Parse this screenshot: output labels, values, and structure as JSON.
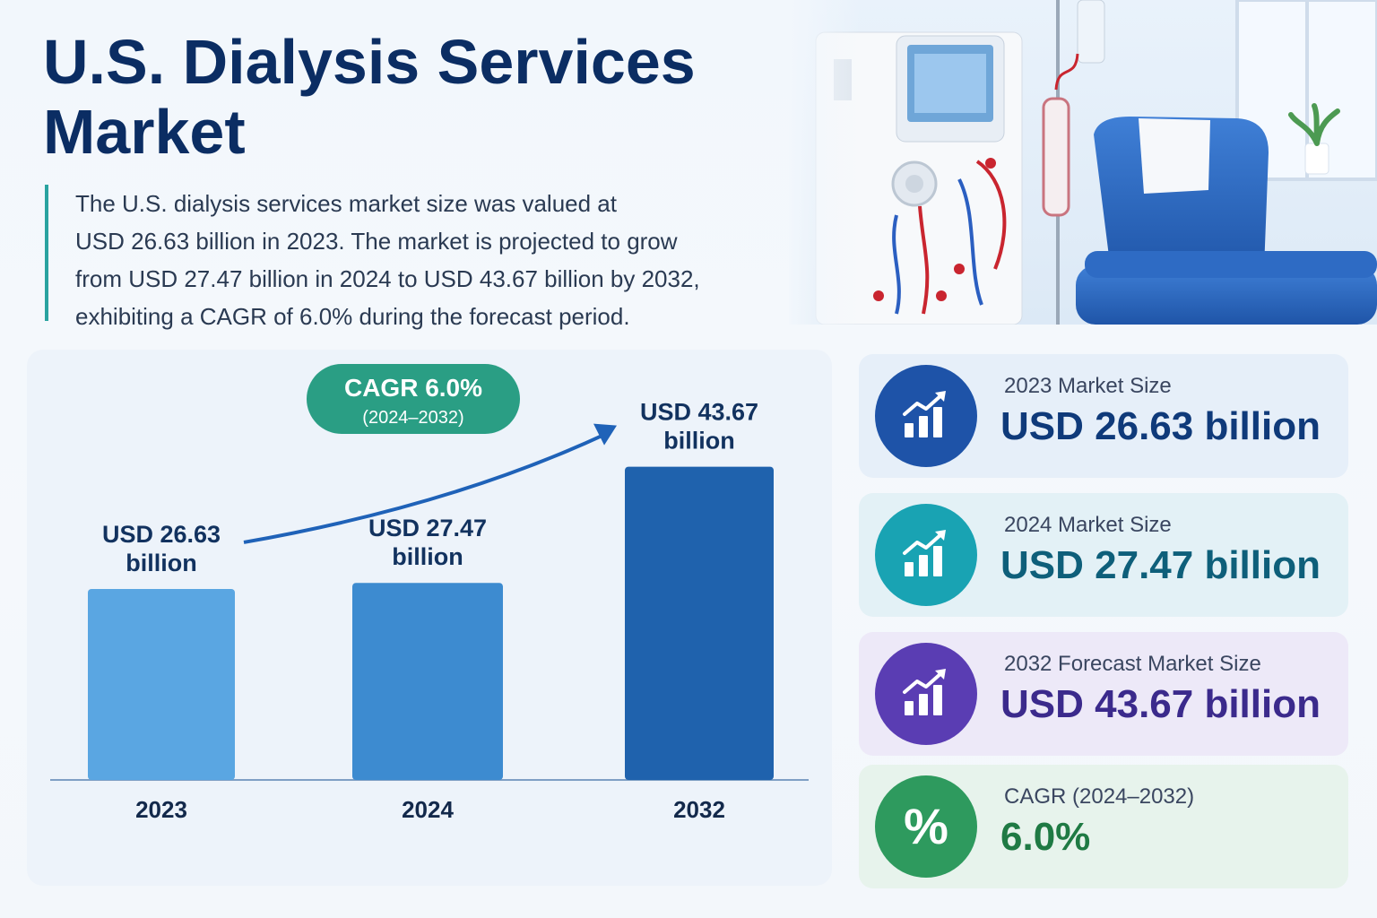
{
  "header": {
    "title": "U.S. Dialysis Services Market",
    "intro_lines": [
      "The U.S. dialysis services market size was valued at",
      "USD 26.63 billion in 2023. The market is projected to grow",
      "from USD 27.47 billion in 2024 to USD 43.67 billion by 2032,",
      "exhibiting a CAGR of 6.0% during the forecast period."
    ]
  },
  "chart_data": {
    "type": "bar",
    "categories": [
      "2023",
      "2024",
      "2032"
    ],
    "values": [
      26.63,
      27.47,
      43.67
    ],
    "value_labels": [
      [
        "USD 26.63",
        "billion"
      ],
      [
        "USD 27.47",
        "billion"
      ],
      [
        "USD 43.67",
        "billion"
      ]
    ],
    "bar_colors": [
      "#5aa6e2",
      "#3d8bd0",
      "#1f62ad"
    ],
    "badge": {
      "line1": "CAGR 6.0%",
      "line2": "(2024–2032)",
      "color": "#2a9e84"
    },
    "title": "",
    "xlabel": "",
    "ylabel": "",
    "ylim": [
      0,
      60
    ],
    "grid": false
  },
  "cards": [
    {
      "label": "2023 Market Size",
      "value": "USD 26.63 billion",
      "icon": "chart-up-icon",
      "accent": "#1e53a8",
      "value_color": "#0f3a7a",
      "bg": "#e6eff9"
    },
    {
      "label": "2024 Market Size",
      "value": "USD 27.47 billion",
      "icon": "chart-up-icon",
      "accent": "#19a3b3",
      "value_color": "#0e5f7a",
      "bg": "#e3f1f6"
    },
    {
      "label": "2032 Forecast Market Size",
      "value": "USD 43.67 billion",
      "icon": "chart-up-icon",
      "accent": "#5a3db3",
      "value_color": "#3b2a8c",
      "bg": "#ede9f8"
    },
    {
      "label": "CAGR (2024–2032)",
      "value": "6.0%",
      "icon": "percent-icon",
      "glyph": "%",
      "accent": "#2e9a5e",
      "value_color": "#1f7a44",
      "bg": "#e7f3ec"
    }
  ]
}
